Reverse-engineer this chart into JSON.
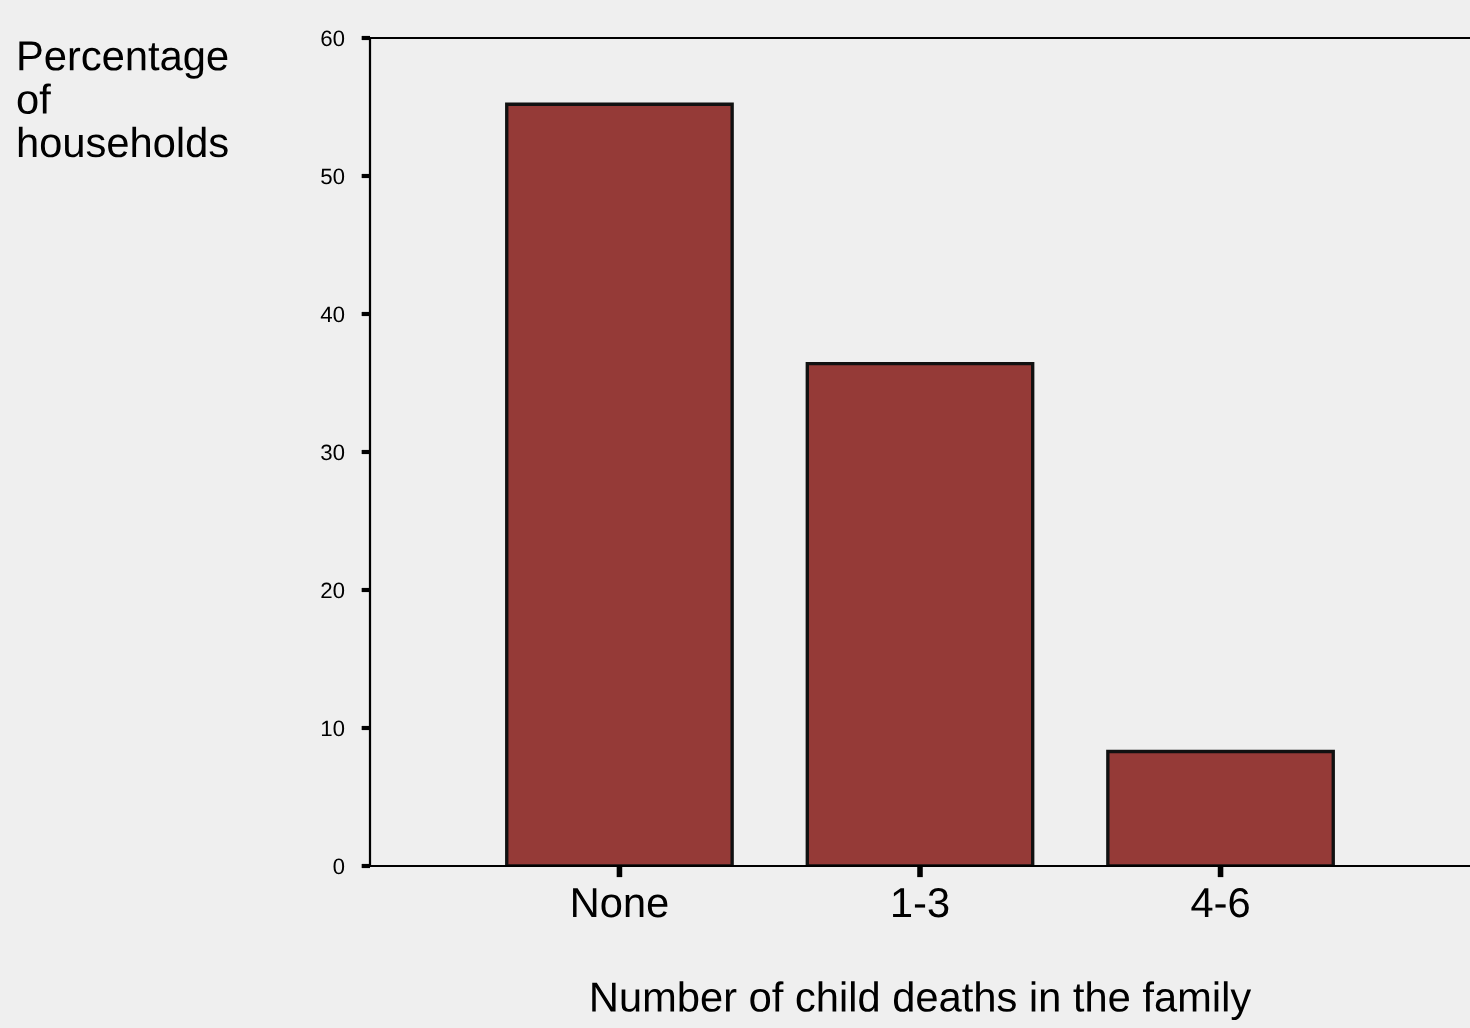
{
  "chart_data": {
    "type": "bar",
    "ylabel": "Percentage\nof\nhouseholds",
    "xlabel": "Number of child deaths in the family",
    "categories": [
      "None",
      "1-3",
      "4-6"
    ],
    "values": [
      55.2,
      36.4,
      8.3
    ],
    "color": "#953a37",
    "ylim": [
      0,
      60
    ],
    "yticks": [
      0,
      10,
      20,
      30,
      40,
      50,
      60
    ],
    "grid": false,
    "legend": false
  }
}
